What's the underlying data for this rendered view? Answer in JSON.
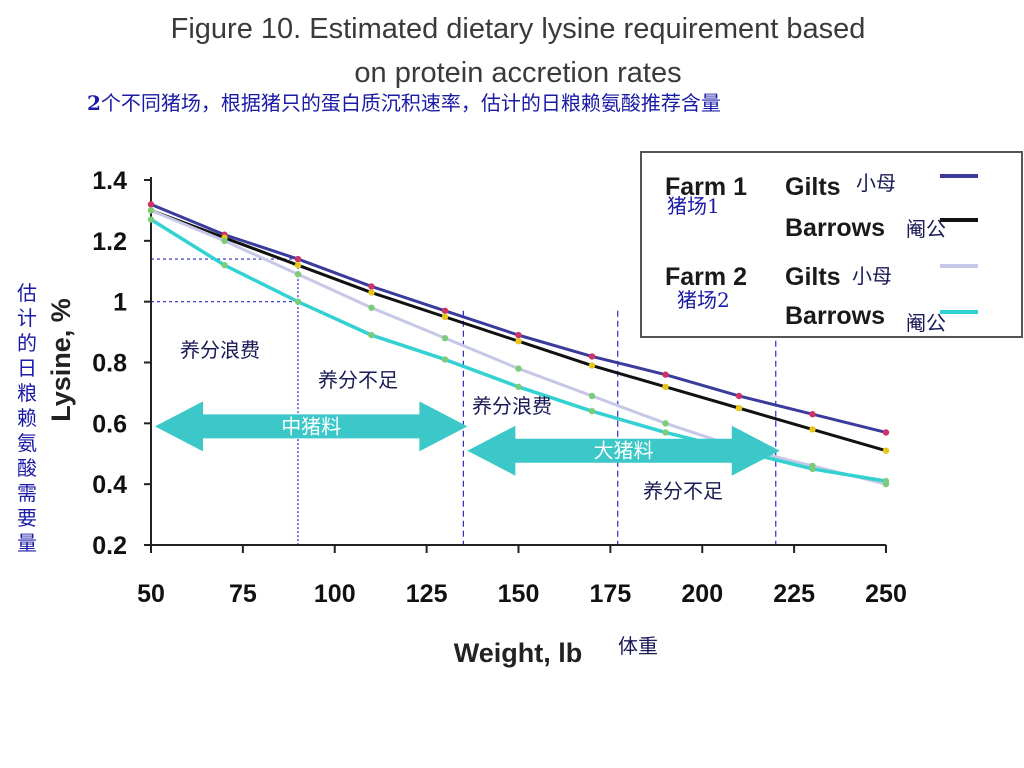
{
  "header": {
    "title_line1": "Figure 10. Estimated dietary lysine requirement based",
    "title_line2": "on protein accretion rates",
    "subtitle_bold": "2",
    "subtitle_rest": "个不同猪场，根据猪只的蛋白质沉积速率，估计的日粮赖氨酸推荐含量"
  },
  "annotations": {
    "y_axis_cn": "估计的日粮赖氨酸需要量",
    "x_axis_cn": "体重",
    "waste_1": "养分浪费",
    "short_1": "养分不足",
    "waste_2": "养分浪费",
    "short_2": "养分不足",
    "arrow_mid": "中猪料",
    "arrow_big": "大猪料"
  },
  "legend": {
    "farm1": "Farm 1",
    "farm2": "Farm 2",
    "gilts": "Gilts",
    "barrows": "Barrows",
    "gilts_cn": "小母",
    "barrows_cn": "阉公",
    "farm1_cn": "猪场1",
    "farm2_cn": "猪场2"
  },
  "chart_data": {
    "type": "line",
    "title": "Figure 10. Estimated dietary lysine requirement based on protein accretion rates",
    "xlabel": "Weight, lb",
    "ylabel": "Lysine, %",
    "xlim": [
      50,
      250
    ],
    "ylim": [
      0.2,
      1.4
    ],
    "x_ticks": [
      50,
      75,
      100,
      125,
      150,
      175,
      200,
      225,
      250
    ],
    "y_ticks": [
      0.2,
      0.4,
      0.6,
      0.8,
      1,
      1.2,
      1.4
    ],
    "y_tick_labels": [
      "0.2",
      "0.4",
      "0.6",
      "0.8",
      "1",
      "1.2",
      "1.4"
    ],
    "grid": false,
    "legend_position": "top-right",
    "series": [
      {
        "name": "Farm 1 Gilts",
        "color": "#3b3b9c",
        "x": [
          50,
          70,
          90,
          110,
          130,
          150,
          170,
          190,
          210,
          230,
          250
        ],
        "values": [
          1.32,
          1.22,
          1.14,
          1.05,
          0.97,
          0.89,
          0.82,
          0.76,
          0.69,
          0.63,
          0.57
        ]
      },
      {
        "name": "Farm 1 Barrows",
        "color": "#111111",
        "x": [
          50,
          70,
          90,
          110,
          130,
          150,
          170,
          190,
          210,
          230,
          250
        ],
        "values": [
          1.3,
          1.21,
          1.12,
          1.03,
          0.95,
          0.87,
          0.79,
          0.72,
          0.65,
          0.58,
          0.51
        ]
      },
      {
        "name": "Farm 2 Gilts",
        "color": "#c7c7e8",
        "x": [
          50,
          70,
          90,
          110,
          130,
          150,
          170,
          190,
          210,
          230,
          250
        ],
        "values": [
          1.3,
          1.2,
          1.09,
          0.98,
          0.88,
          0.78,
          0.69,
          0.6,
          0.52,
          0.46,
          0.4
        ]
      },
      {
        "name": "Farm 2 Barrows",
        "color": "#33d1d1",
        "x": [
          50,
          70,
          90,
          110,
          130,
          150,
          170,
          190,
          210,
          230,
          250
        ],
        "values": [
          1.27,
          1.12,
          1.0,
          0.89,
          0.81,
          0.72,
          0.64,
          0.57,
          0.51,
          0.45,
          0.41
        ]
      }
    ],
    "marker_colors": [
      "#cc3366",
      "#e6c619",
      "#7ccc7c",
      "#7ccc7c"
    ],
    "guides": {
      "vertical_x": [
        90,
        135,
        177,
        220
      ],
      "horizontal": [
        {
          "y": 1.0,
          "x_to": 90
        },
        {
          "y": 1.14,
          "x_to": 90
        }
      ]
    },
    "feed_ranges": [
      {
        "label": "中猪料",
        "x": [
          50,
          135
        ],
        "y": 0.59
      },
      {
        "label": "大猪料",
        "x": [
          135,
          220
        ],
        "y": 0.51
      }
    ]
  }
}
